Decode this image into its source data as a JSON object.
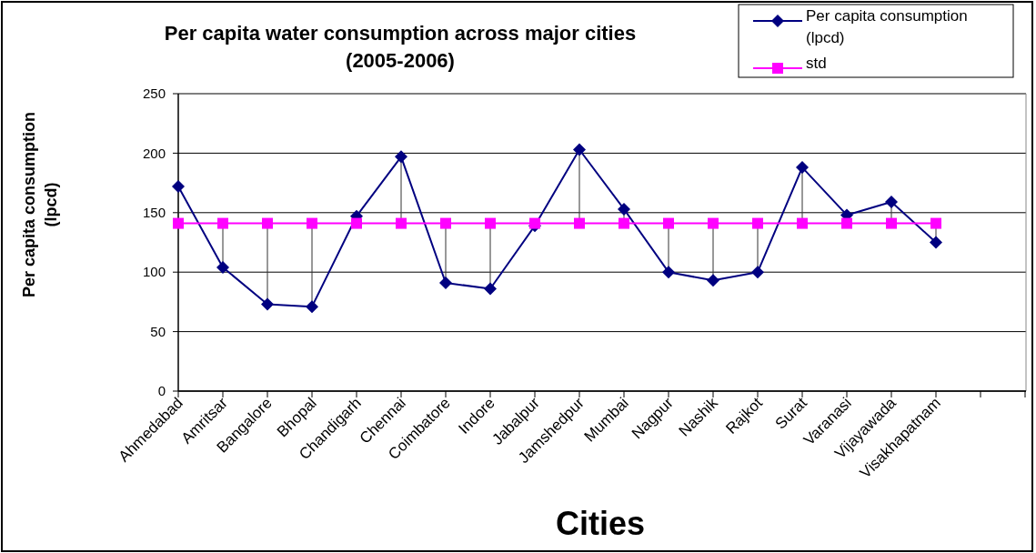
{
  "chart_data": {
    "type": "line",
    "title": "Per capita water consumption across major cities\n(2005-2006)",
    "xlabel": "Cities",
    "ylabel": "Per capita consumption\n(lpcd)",
    "categories": [
      "Ahmedabad",
      "Amritsar",
      "Bangalore",
      "Bhopal",
      "Chandigarh",
      "Chennai",
      "Coimbatore",
      "Indore",
      "Jabalpur",
      "Jamshedpur",
      "Mumbai",
      "Nagpur",
      "Nashik",
      "Rajkot",
      "Surat",
      "Varanasi",
      "Vijayawada",
      "Visakhapatnam",
      null,
      null
    ],
    "series": [
      {
        "name": "Per capita consumption (lpcd)",
        "color": "#000080",
        "marker": "diamond",
        "values": [
          172,
          104,
          73,
          71,
          147,
          197,
          91,
          86,
          139,
          203,
          153,
          100,
          93,
          100,
          188,
          148,
          159,
          125,
          null,
          null
        ]
      },
      {
        "name": "std",
        "color": "#ff00ff",
        "marker": "square",
        "values": [
          141,
          141,
          141,
          141,
          141,
          141,
          141,
          141,
          141,
          141,
          141,
          141,
          141,
          141,
          141,
          141,
          141,
          141,
          null,
          null
        ]
      }
    ],
    "ylim": [
      0,
      250
    ],
    "yticks": [
      0,
      50,
      100,
      150,
      200,
      250
    ],
    "grid": "y",
    "legend": "top right"
  }
}
